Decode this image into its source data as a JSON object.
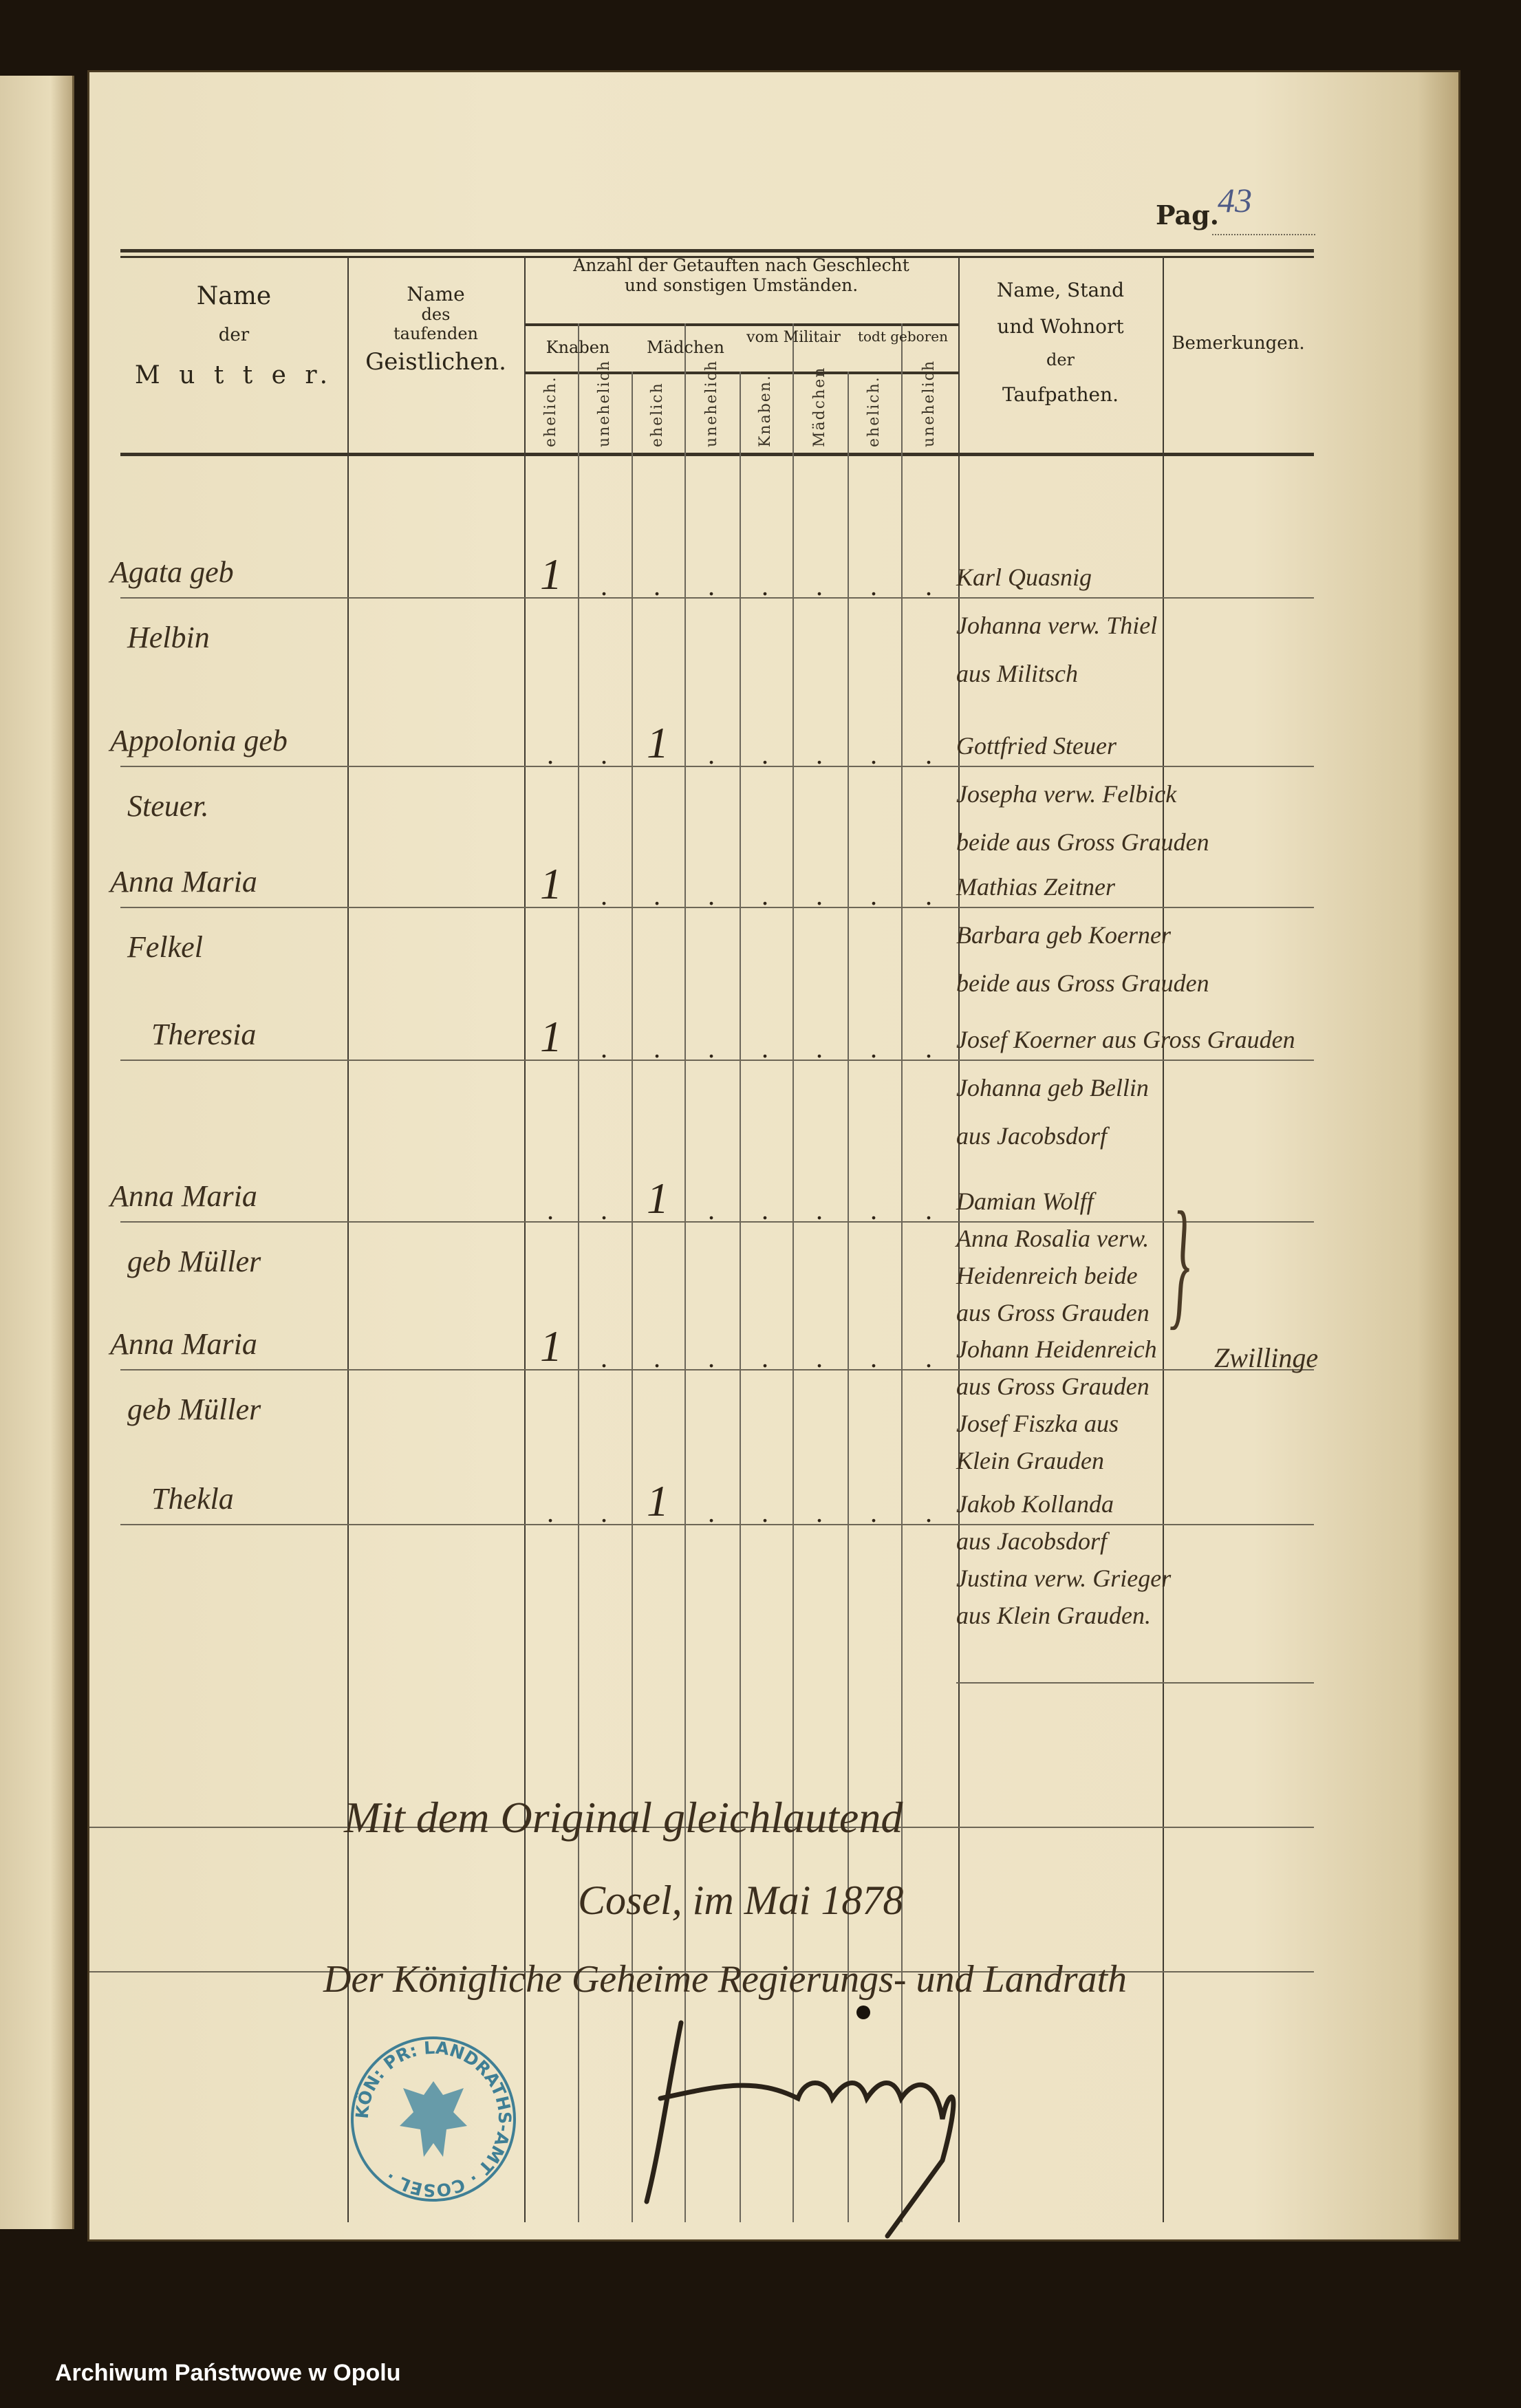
{
  "page_label": "Pag.",
  "page_number": "43",
  "header": {
    "mother": [
      "Name",
      "der",
      "M u t t e r."
    ],
    "clergy": [
      "Name",
      "des",
      "taufenden",
      "Geistlichen."
    ],
    "counts_group": [
      "Anzahl der Getauften nach Geschlecht",
      "und sonstigen Umständen."
    ],
    "subgroups": [
      "Knaben",
      "Mädchen",
      "vom Militair",
      "todt geboren"
    ],
    "subcolumns": [
      "ehelich.",
      "unehelich",
      "ehelich",
      "unehelich",
      "Knaben.",
      "Mädchen",
      "ehelich.",
      "unehelich"
    ],
    "sponsors": [
      "Name, Stand",
      "und Wohnort",
      "der",
      "Taufpathen."
    ],
    "remarks": "Bemerkungen."
  },
  "rows": [
    {
      "mother": [
        "Agata geb",
        "Helbin"
      ],
      "counts": [
        "1",
        ".",
        ".",
        ".",
        ".",
        ".",
        ".",
        "."
      ],
      "sponsors": [
        "Karl Quasnig",
        "Johanna verw. Thiel",
        "aus Militsch"
      ]
    },
    {
      "mother": [
        "Appolonia geb",
        "Steuer."
      ],
      "counts": [
        ".",
        ".",
        "1",
        ".",
        ".",
        ".",
        ".",
        "."
      ],
      "sponsors": [
        "Gottfried Steuer",
        "Josepha verw. Felbick",
        "beide aus Gross Grauden"
      ]
    },
    {
      "mother": [
        "Anna Maria",
        "Felkel"
      ],
      "counts": [
        "1",
        ".",
        ".",
        ".",
        ".",
        ".",
        ".",
        "."
      ],
      "sponsors": [
        "Mathias Zeitner",
        "Barbara geb Koerner",
        "beide aus Gross Grauden"
      ]
    },
    {
      "mother": [
        "Theresia"
      ],
      "counts": [
        "1",
        ".",
        ".",
        ".",
        ".",
        ".",
        ".",
        "."
      ],
      "sponsors": [
        "Josef Koerner aus Gross Grauden",
        "Johanna geb Bellin",
        "aus Jacobsdorf"
      ]
    },
    {
      "mother": [
        "Anna Maria",
        "geb Müller"
      ],
      "counts": [
        ".",
        ".",
        "1",
        ".",
        ".",
        ".",
        ".",
        "."
      ],
      "sponsors": [
        "Damian Wolff",
        "Anna Rosalia verw.",
        "Heidenreich beide",
        "aus Gross Grauden"
      ]
    },
    {
      "mother": [
        "Anna Maria",
        "geb Müller"
      ],
      "counts": [
        "1",
        ".",
        ".",
        ".",
        ".",
        ".",
        ".",
        "."
      ],
      "sponsors": [
        "Johann Heidenreich",
        "aus Gross Grauden",
        "Josef Fiszka aus",
        "Klein Grauden"
      ]
    },
    {
      "mother": [
        "Thekla"
      ],
      "counts": [
        ".",
        ".",
        "1",
        ".",
        ".",
        ".",
        ".",
        "."
      ],
      "sponsors": [
        "Jakob Kollanda",
        "aus Jacobsdorf",
        "Justina verw. Grieger",
        "aus Klein Grauden."
      ]
    }
  ],
  "remark_twins": "Zwillinge",
  "attestation": {
    "line1": "Mit dem Original gleichlautend",
    "line2": "Cosel, im Mai 1878",
    "line3": "Der Königliche Geheime Regierungs- und Landrath"
  },
  "stamp": {
    "text": "KÖN: PR: LANDRATHS-AMT · COSEL ·",
    "color": "#3f7f95"
  },
  "footer": "Archiwum Państwowe w Opolu"
}
